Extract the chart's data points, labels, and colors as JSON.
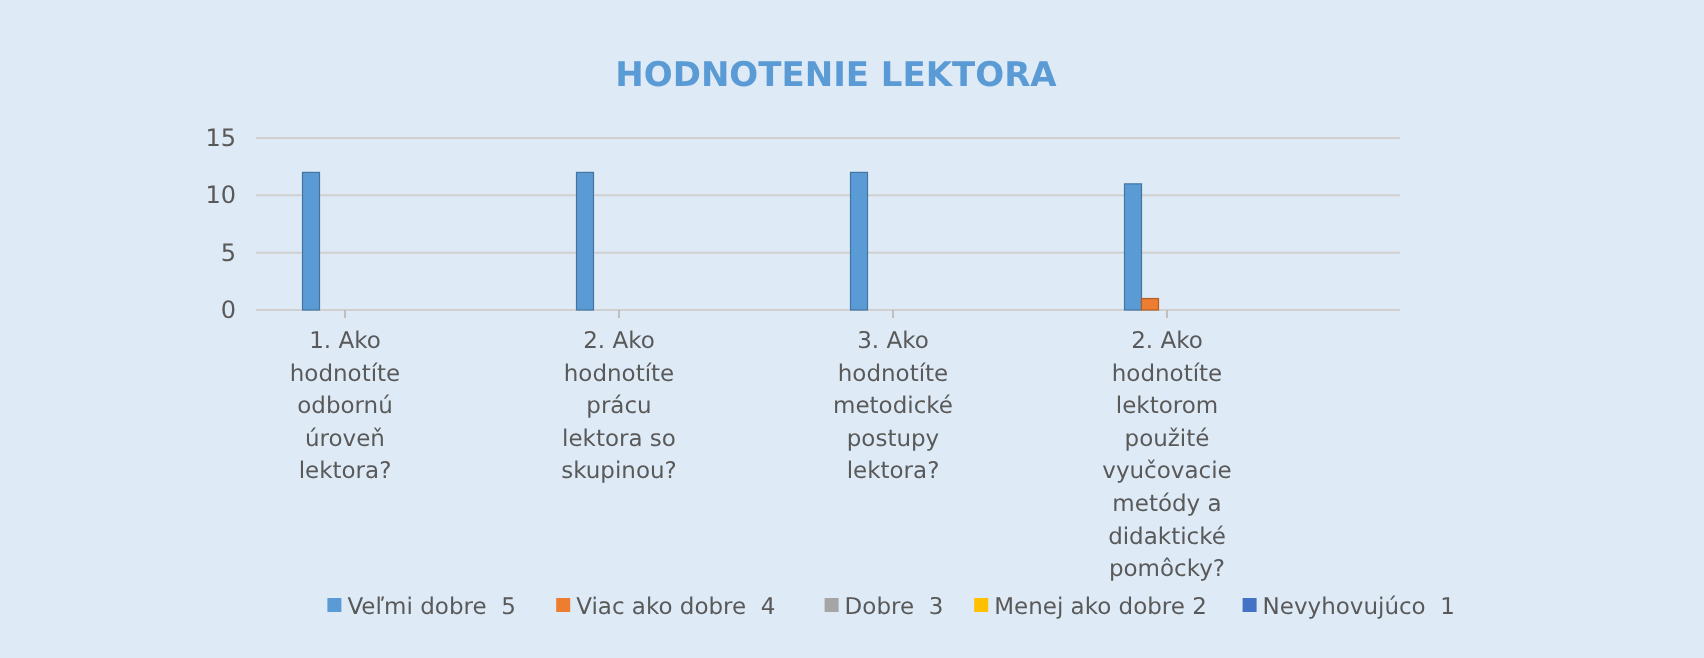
{
  "chart_data": {
    "type": "bar",
    "title": "HODNOTENIE LEKTORA",
    "categories": [
      "1. Ako hodnotíte odbornú úroveň lektora?",
      "2. Ako hodnotíte prácu lektora so skupinou?",
      "3. Ako hodnotíte metodické postupy lektora?",
      "2. Ako hodnotíte lektorom použité vyučovacie metódy a didaktické pomôcky?"
    ],
    "series": [
      {
        "name": "Veľmi dobre  5",
        "color": "#5b9bd5",
        "values": [
          12,
          12,
          12,
          11
        ]
      },
      {
        "name": "Viac ako dobre  4",
        "color": "#ed7d31",
        "values": [
          0,
          0,
          0,
          1
        ]
      },
      {
        "name": "Dobre  3",
        "color": "#a5a5a5",
        "values": [
          0,
          0,
          0,
          0
        ]
      },
      {
        "name": "Menej ako dobre 2",
        "color": "#ffc000",
        "values": [
          0,
          0,
          0,
          0
        ]
      },
      {
        "name": "Nevyhovujúco  1",
        "color": "#4472c4",
        "values": [
          0,
          0,
          0,
          0
        ]
      }
    ],
    "ylim": [
      0,
      15
    ],
    "yticks": [
      0,
      5,
      10,
      15
    ],
    "grid": "y",
    "legend": "bottom"
  }
}
